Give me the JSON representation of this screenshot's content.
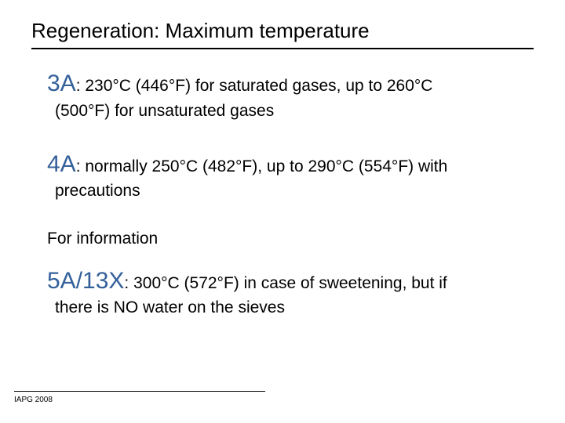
{
  "title": "Regeneration: Maximum temperature",
  "entries": [
    {
      "label": "3A",
      "text": ": 230°C (446°F) for saturated gases, up to 260°C",
      "cont": "(500°F) for unsaturated gases"
    },
    {
      "label": "4A",
      "text": ": normally 250°C (482°F), up to 290°C (554°F) with",
      "cont": "precautions"
    }
  ],
  "info_line": "For information",
  "entry3": {
    "label": "5A/13X",
    "text": ": 300°C (572°F) in case of sweetening, but if",
    "cont": "there is NO water on the sieves"
  },
  "footer": "IAPG 2008",
  "colors": {
    "label_color": "#34609a",
    "text_color": "#000000",
    "background": "#ffffff"
  },
  "typography": {
    "title_fontsize": 26,
    "label_fontsize": 30,
    "body_fontsize": 21,
    "footer_fontsize": 10,
    "font_family": "Arial"
  }
}
